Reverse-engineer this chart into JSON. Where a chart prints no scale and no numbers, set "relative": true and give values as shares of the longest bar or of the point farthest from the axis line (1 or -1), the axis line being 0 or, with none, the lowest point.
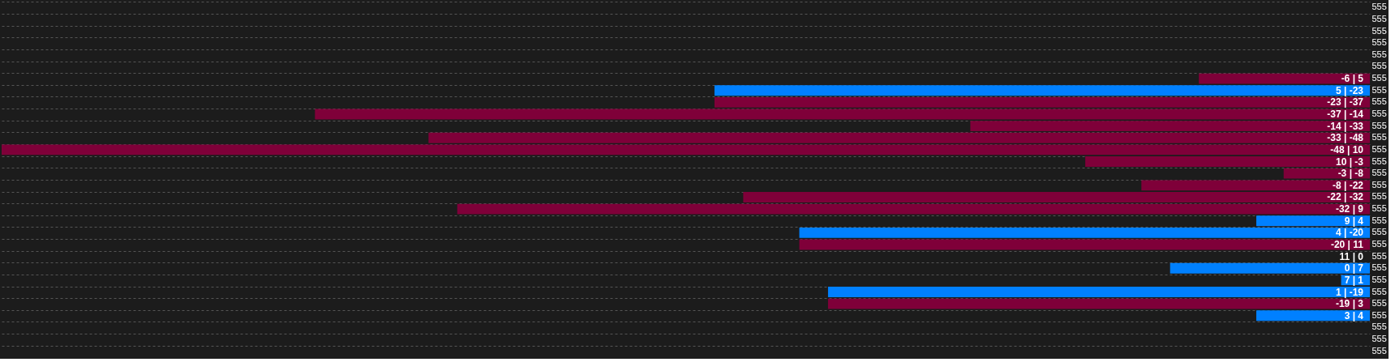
{
  "chart_data": {
    "type": "bar",
    "orientation": "horizontal",
    "grid": "y",
    "tick_labels": "y",
    "relative": true,
    "categories": [
      "555",
      "555",
      "555",
      "555",
      "555",
      "555",
      "555",
      "555",
      "555",
      "555",
      "555",
      "555",
      "555",
      "555",
      "555",
      "555",
      "555",
      "555",
      "555",
      "555",
      "555",
      "555",
      "555",
      "555",
      "555",
      "555",
      "555",
      "555",
      "555",
      "555"
    ],
    "values": [
      null,
      null,
      null,
      null,
      null,
      null,
      0.125,
      0.479,
      0.479,
      0.771,
      0.292,
      0.688,
      1,
      0.208,
      0.063,
      0.167,
      0.458,
      0.667,
      0.083,
      0.417,
      0.417,
      0,
      0.146,
      0.021,
      0.396,
      0.396,
      0.083,
      null,
      null,
      null
    ],
    "colors": [
      "#7f0039",
      "#7f0039",
      "#7f0039",
      "#7f0039",
      "#7f0039",
      "#7f0039",
      "#7f0039",
      "#0080ff",
      "#7f0039",
      "#7f0039",
      "#7f0039",
      "#7f0039",
      "#7f0039",
      "#7f0039",
      "#7f0039",
      "#7f0039",
      "#7f0039",
      "#7f0039",
      "#0080ff",
      "#0080ff",
      "#7f0039",
      "#0080ff",
      "#0080ff",
      "#0080ff",
      "#0080ff",
      "#7f0039",
      "#0080ff",
      "#0080ff",
      "#0080ff",
      "#0080ff"
    ],
    "annotations": [
      "-6 | 5",
      "5 | -23",
      "-23 | -37",
      "-37 | -14",
      "-14 | -33",
      "-33 | -48",
      "-48 | 10",
      "10 | -3",
      "-3 | -8",
      "-8 | -22",
      "-22 | -32",
      "-32 | 9",
      "9 | 4",
      "4 | -20",
      "-20 | 11",
      "11 | 0",
      "0 | 7",
      "7 | 1",
      "1 | -19",
      "-19 | 3",
      "3 | 4"
    ]
  }
}
